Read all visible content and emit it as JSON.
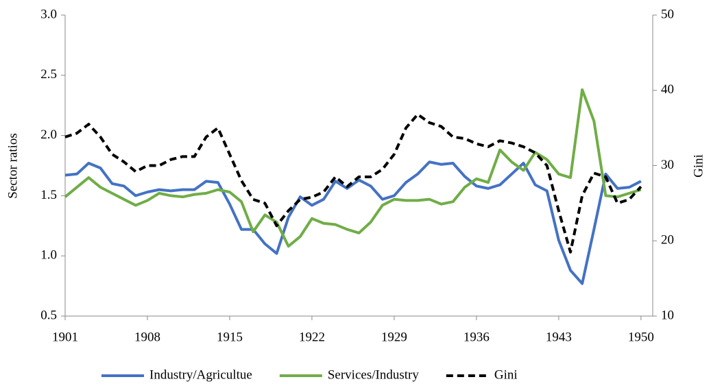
{
  "chart_data": {
    "type": "line",
    "x": [
      1901,
      1902,
      1903,
      1904,
      1905,
      1906,
      1907,
      1908,
      1909,
      1910,
      1911,
      1912,
      1913,
      1914,
      1915,
      1916,
      1917,
      1918,
      1919,
      1920,
      1921,
      1922,
      1923,
      1924,
      1925,
      1926,
      1927,
      1928,
      1929,
      1930,
      1931,
      1932,
      1933,
      1934,
      1935,
      1936,
      1937,
      1938,
      1939,
      1940,
      1941,
      1942,
      1943,
      1944,
      1945,
      1946,
      1947,
      1948,
      1949,
      1950
    ],
    "xlim": [
      1901,
      1951
    ],
    "xticks": [
      1901,
      1908,
      1915,
      1922,
      1929,
      1936,
      1943,
      1950
    ],
    "y_label": "Sector ratios",
    "y2_label": "Gini",
    "ylim": [
      0.5,
      3
    ],
    "yticks": [
      0.5,
      {
        "value": 1,
        "label": "1.0"
      },
      1.5,
      {
        "value": 2,
        "label": "2.0"
      },
      2.5,
      {
        "value": 3,
        "label": "3.0"
      }
    ],
    "y2lim": [
      10,
      50
    ],
    "y2ticks": [
      10,
      20,
      30,
      40,
      50
    ],
    "grid": false,
    "legend": "bottom",
    "series": [
      {
        "name": "Industry/Agricultue",
        "color": "#4472c4",
        "values": [
          1.67,
          1.68,
          1.77,
          1.73,
          1.6,
          1.58,
          1.5,
          1.53,
          1.55,
          1.54,
          1.55,
          1.55,
          1.62,
          1.61,
          1.43,
          1.22,
          1.22,
          1.1,
          1.02,
          1.32,
          1.49,
          1.42,
          1.47,
          1.62,
          1.56,
          1.63,
          1.58,
          1.47,
          1.5,
          1.61,
          1.68,
          1.78,
          1.76,
          1.77,
          1.66,
          1.58,
          1.56,
          1.59,
          1.68,
          1.77,
          1.59,
          1.54,
          1.13,
          0.88,
          0.77,
          1.22,
          1.68,
          1.56,
          1.57,
          1.62
        ]
      },
      {
        "name": "Services/Industry",
        "color": "#70ad47",
        "values": [
          1.49,
          1.57,
          1.65,
          1.57,
          1.52,
          1.47,
          1.42,
          1.46,
          1.52,
          1.5,
          1.49,
          1.51,
          1.52,
          1.55,
          1.53,
          1.45,
          1.2,
          1.34,
          1.28,
          1.08,
          1.16,
          1.31,
          1.27,
          1.26,
          1.22,
          1.19,
          1.28,
          1.42,
          1.47,
          1.46,
          1.46,
          1.47,
          1.43,
          1.45,
          1.57,
          1.64,
          1.61,
          1.88,
          1.78,
          1.71,
          1.86,
          1.8,
          1.68,
          1.65,
          2.38,
          2.12,
          1.5,
          1.49,
          1.52,
          1.55
        ]
      },
      {
        "name": "Gini",
        "color": "#000000",
        "dashed": true,
        "axis": "y2",
        "values": [
          33.8,
          34.3,
          35.5,
          33.8,
          31.5,
          30.5,
          29.2,
          30.0,
          30.0,
          30.8,
          31.2,
          31.2,
          33.8,
          35.0,
          31.5,
          28.0,
          25.5,
          25.0,
          22.0,
          24.0,
          25.5,
          25.8,
          26.5,
          28.5,
          27.2,
          28.5,
          28.5,
          29.5,
          31.5,
          35.0,
          36.8,
          35.7,
          35.2,
          33.8,
          33.6,
          32.9,
          32.5,
          33.3,
          33.0,
          32.5,
          31.7,
          30.0,
          24.0,
          18.5,
          26.0,
          29.0,
          28.5,
          25.0,
          25.5,
          27.2
        ]
      }
    ]
  }
}
